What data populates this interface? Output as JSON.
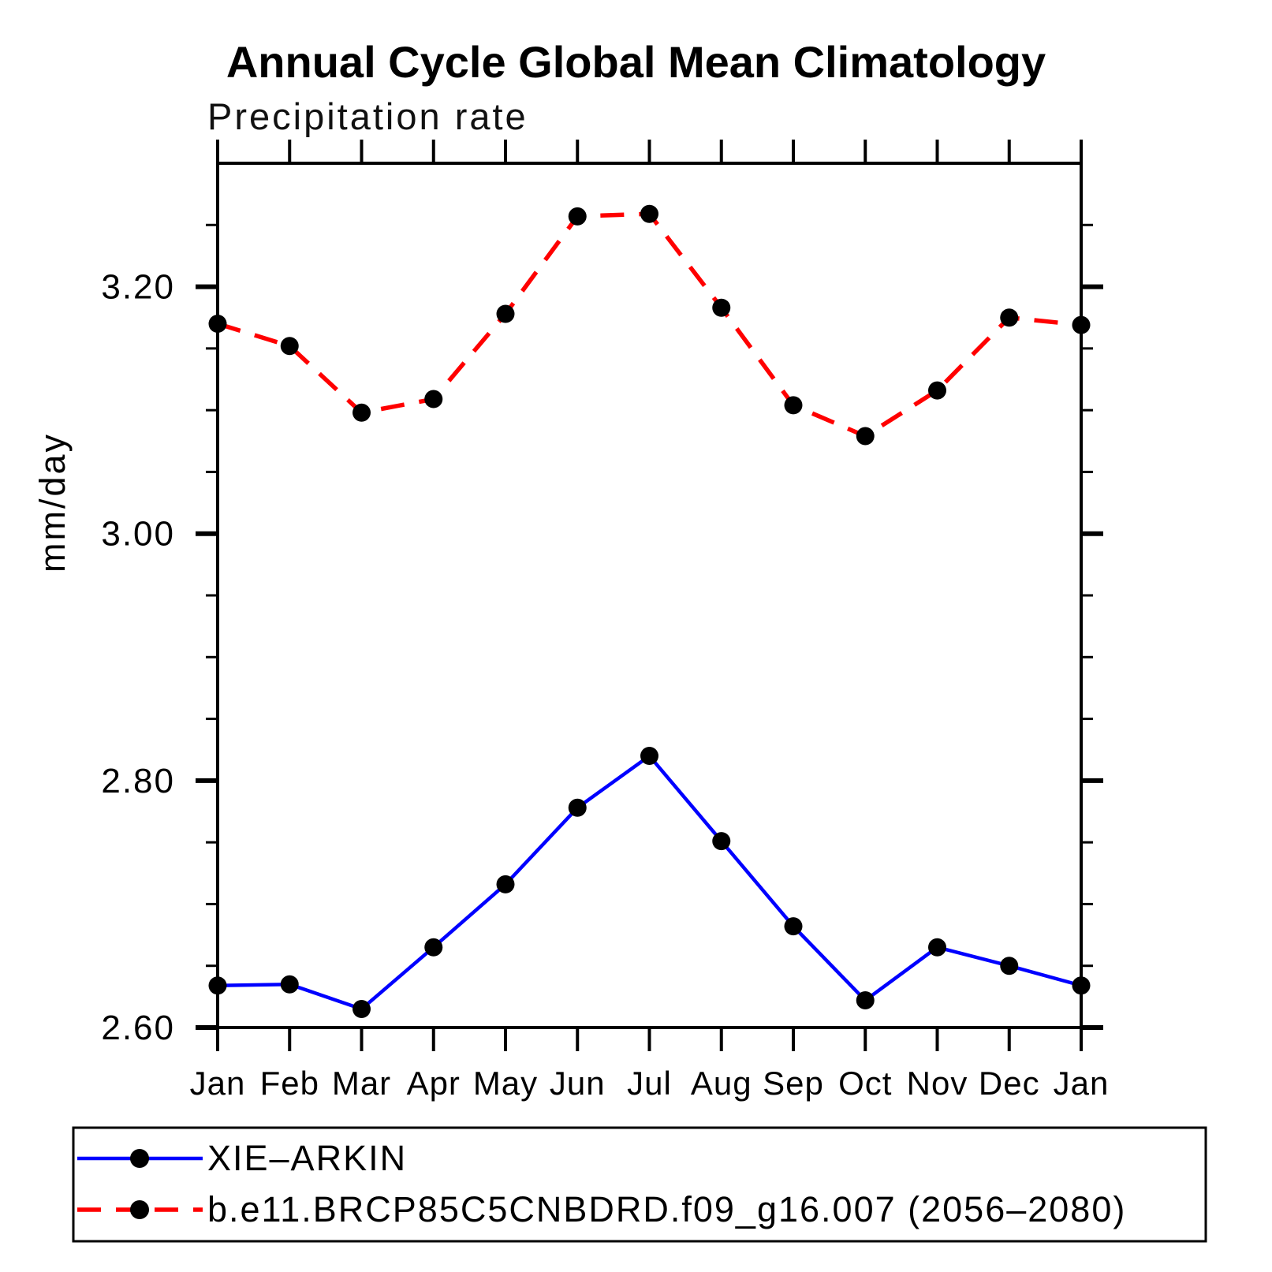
{
  "chart_data": {
    "type": "line",
    "title": "Annual Cycle Global Mean Climatology",
    "subtitle": "Precipitation rate",
    "ylabel": "mm/day",
    "xlabel": "",
    "categories": [
      "Jan",
      "Feb",
      "Mar",
      "Apr",
      "May",
      "Jun",
      "Jul",
      "Aug",
      "Sep",
      "Oct",
      "Nov",
      "Dec",
      "Jan"
    ],
    "ylim": [
      2.6,
      3.3
    ],
    "yticks_major": {
      "values": [
        2.6,
        2.8,
        3.0,
        3.2
      ],
      "labels": [
        "2.60",
        "2.80",
        "3.00",
        "3.20"
      ]
    },
    "ytick_minor_step": 0.05,
    "grid": false,
    "legend_position": "bottom-left",
    "axis_color": "#000000",
    "marker_color": "#000000",
    "series": [
      {
        "name": "XIE–ARKIN",
        "type": "line",
        "line_style": "solid",
        "color": "#0000ff",
        "marker": {
          "shape": "circle",
          "color": "#000000"
        },
        "values": [
          2.634,
          2.635,
          2.615,
          2.665,
          2.716,
          2.778,
          2.82,
          2.751,
          2.682,
          2.622,
          2.665,
          2.65,
          2.634
        ]
      },
      {
        "name": "b.e11.BRCP85C5CNBDRD.f09_g16.007 (2056–2080)",
        "type": "line",
        "line_style": "dashed",
        "color": "#ff0000",
        "marker": {
          "shape": "circle",
          "color": "#000000"
        },
        "values": [
          3.17,
          3.152,
          3.098,
          3.109,
          3.178,
          3.257,
          3.259,
          3.183,
          3.104,
          3.079,
          3.116,
          3.175,
          3.169
        ]
      }
    ]
  }
}
